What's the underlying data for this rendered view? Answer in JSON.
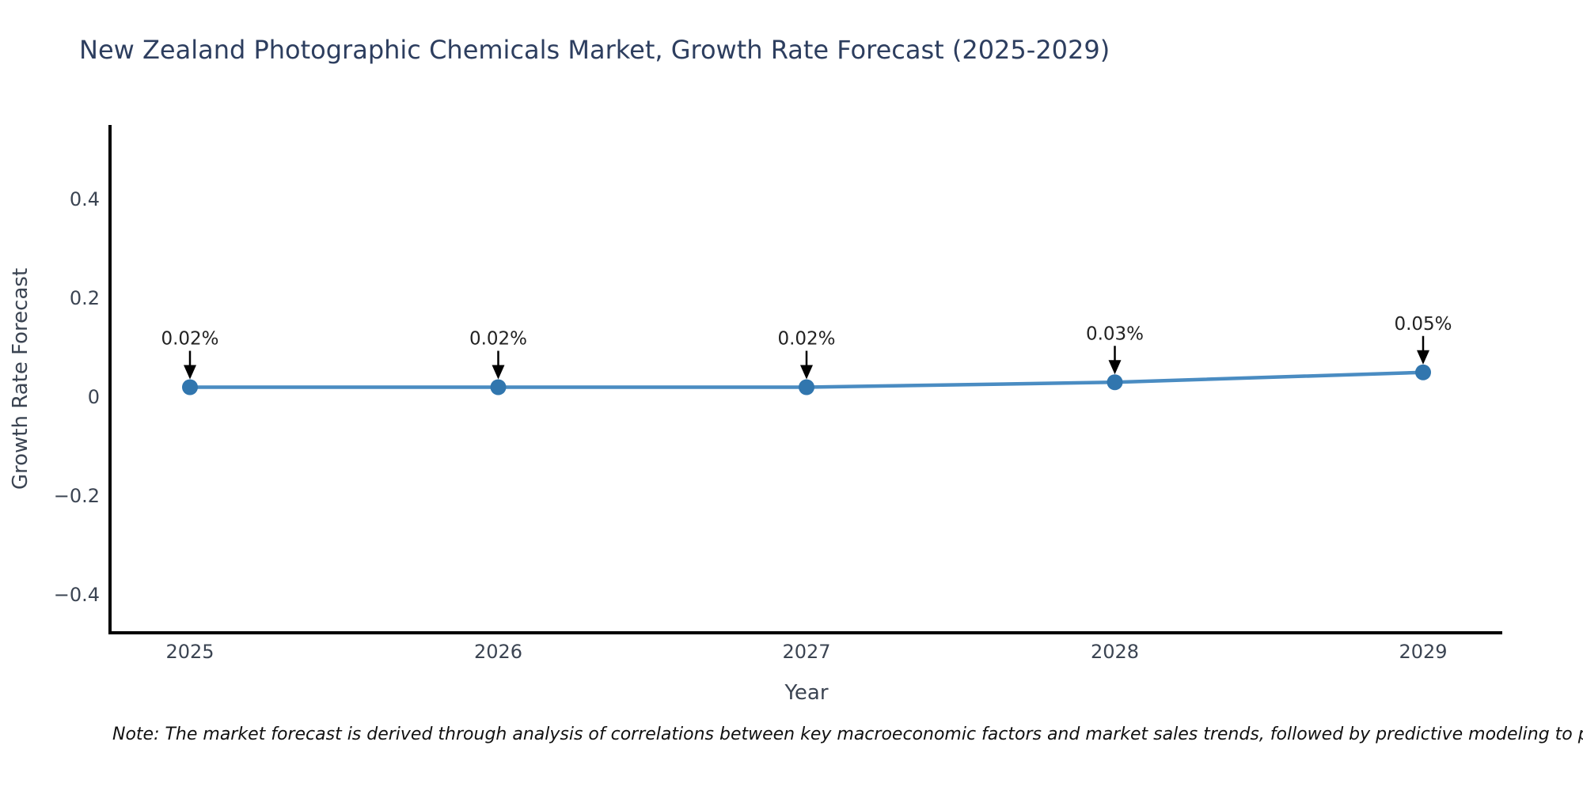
{
  "chart_data": {
    "type": "line",
    "title": "New Zealand Photographic Chemicals Market, Growth Rate Forecast (2025-2029)",
    "xlabel": "Year",
    "ylabel": "Growth Rate Forecast",
    "x": [
      2025,
      2026,
      2027,
      2028,
      2029
    ],
    "series": [
      {
        "name": "Growth Rate Forecast",
        "values": [
          0.02,
          0.02,
          0.02,
          0.03,
          0.05
        ]
      }
    ],
    "point_labels": [
      "0.02%",
      "0.02%",
      "0.02%",
      "0.03%",
      "0.05%"
    ],
    "yticks": [
      0.4,
      0.2,
      0,
      -0.2,
      -0.4
    ],
    "ytick_labels": [
      "0.4",
      "0.2",
      "0",
      "−0.2",
      "−0.4"
    ],
    "xtick_labels": [
      "2025",
      "2026",
      "2027",
      "2028",
      "2029"
    ],
    "ylim": [
      -0.48,
      0.55
    ],
    "grid": false,
    "legend_position": "none",
    "line_color": "#4a8cc2",
    "marker_color": "#3176ae",
    "axis_color": "#000000",
    "title_color": "#2d3e5f",
    "tick_color": "#3b4452",
    "annotation_color": "#222222",
    "arrow_color": "#000000"
  },
  "note": "Note: The market forecast is derived through analysis of correlations between key macroeconomic factors and market sales trends, followed by predictive modeling to project future sales."
}
